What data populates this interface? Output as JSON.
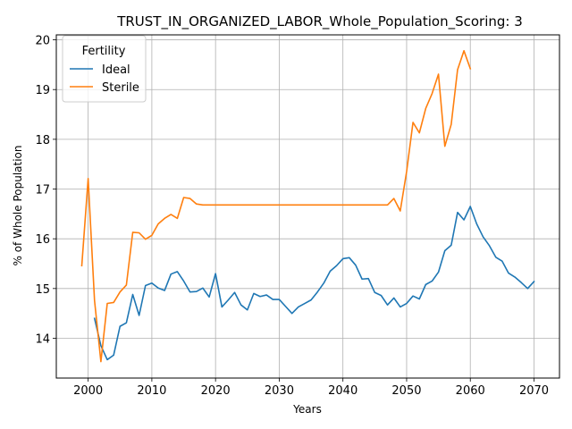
{
  "chart_data": {
    "type": "line",
    "title": "TRUST_IN_ORGANIZED_LABOR_Whole_Population_Scoring: 3",
    "xlabel": "Years",
    "ylabel": "% of Whole Population",
    "xlim": [
      1995,
      2074
    ],
    "ylim": [
      13.2,
      20.1
    ],
    "xticks": [
      2000,
      2010,
      2020,
      2030,
      2040,
      2050,
      2060,
      2070
    ],
    "yticks": [
      14,
      15,
      16,
      17,
      18,
      19,
      20
    ],
    "grid": true,
    "legend": {
      "title": "Fertility",
      "placement": "top-left"
    },
    "series": [
      {
        "name": "Ideal",
        "color": "#1f77b4",
        "x": [
          2001,
          2002,
          2003,
          2004,
          2005,
          2006,
          2007,
          2008,
          2009,
          2010,
          2011,
          2012,
          2013,
          2014,
          2015,
          2016,
          2017,
          2018,
          2019,
          2020,
          2021,
          2022,
          2023,
          2024,
          2025,
          2026,
          2027,
          2028,
          2029,
          2030,
          2031,
          2032,
          2033,
          2034,
          2035,
          2036,
          2037,
          2038,
          2039,
          2040,
          2041,
          2042,
          2043,
          2044,
          2045,
          2046,
          2047,
          2048,
          2049,
          2050,
          2051,
          2052,
          2053,
          2054,
          2055,
          2056,
          2057,
          2058,
          2059,
          2060,
          2061,
          2062,
          2063,
          2064,
          2065,
          2066,
          2067,
          2068,
          2069,
          2070
        ],
        "values": [
          14.4,
          13.85,
          13.57,
          13.66,
          14.24,
          14.31,
          14.88,
          14.46,
          15.06,
          15.11,
          15.01,
          14.96,
          15.29,
          15.34,
          15.15,
          14.93,
          14.94,
          15.01,
          14.83,
          15.3,
          14.63,
          14.77,
          14.92,
          14.67,
          14.57,
          14.9,
          14.84,
          14.87,
          14.78,
          14.78,
          14.64,
          14.5,
          14.63,
          14.7,
          14.77,
          14.93,
          15.11,
          15.35,
          15.46,
          15.6,
          15.62,
          15.47,
          15.19,
          15.2,
          14.92,
          14.86,
          14.67,
          14.81,
          14.63,
          14.7,
          14.85,
          14.79,
          15.08,
          15.15,
          15.33,
          15.76,
          15.87,
          16.53,
          16.38,
          16.65,
          16.3,
          16.04,
          15.86,
          15.63,
          15.55,
          15.31,
          15.23,
          15.12,
          15.0,
          15.14
        ]
      },
      {
        "name": "Sterile",
        "color": "#ff7f0e",
        "x": [
          1999,
          2000,
          2001,
          2002,
          2003,
          2004,
          2005,
          2006,
          2007,
          2008,
          2009,
          2010,
          2011,
          2012,
          2013,
          2014,
          2015,
          2016,
          2017,
          2018,
          2020,
          2025,
          2030,
          2035,
          2040,
          2045,
          2046,
          2047,
          2048,
          2049,
          2050,
          2051,
          2052,
          2053,
          2054,
          2055,
          2056,
          2057,
          2058,
          2059,
          2060
        ],
        "values": [
          15.46,
          17.21,
          14.76,
          13.53,
          14.7,
          14.72,
          14.93,
          15.07,
          16.13,
          16.12,
          15.99,
          16.07,
          16.3,
          16.41,
          16.49,
          16.41,
          16.83,
          16.81,
          16.7,
          16.68,
          16.68,
          16.68,
          16.68,
          16.68,
          16.68,
          16.68,
          16.68,
          16.68,
          16.81,
          16.56,
          17.35,
          18.34,
          18.13,
          18.62,
          18.92,
          19.31,
          17.86,
          18.3,
          19.4,
          19.78,
          19.42
        ]
      }
    ]
  }
}
